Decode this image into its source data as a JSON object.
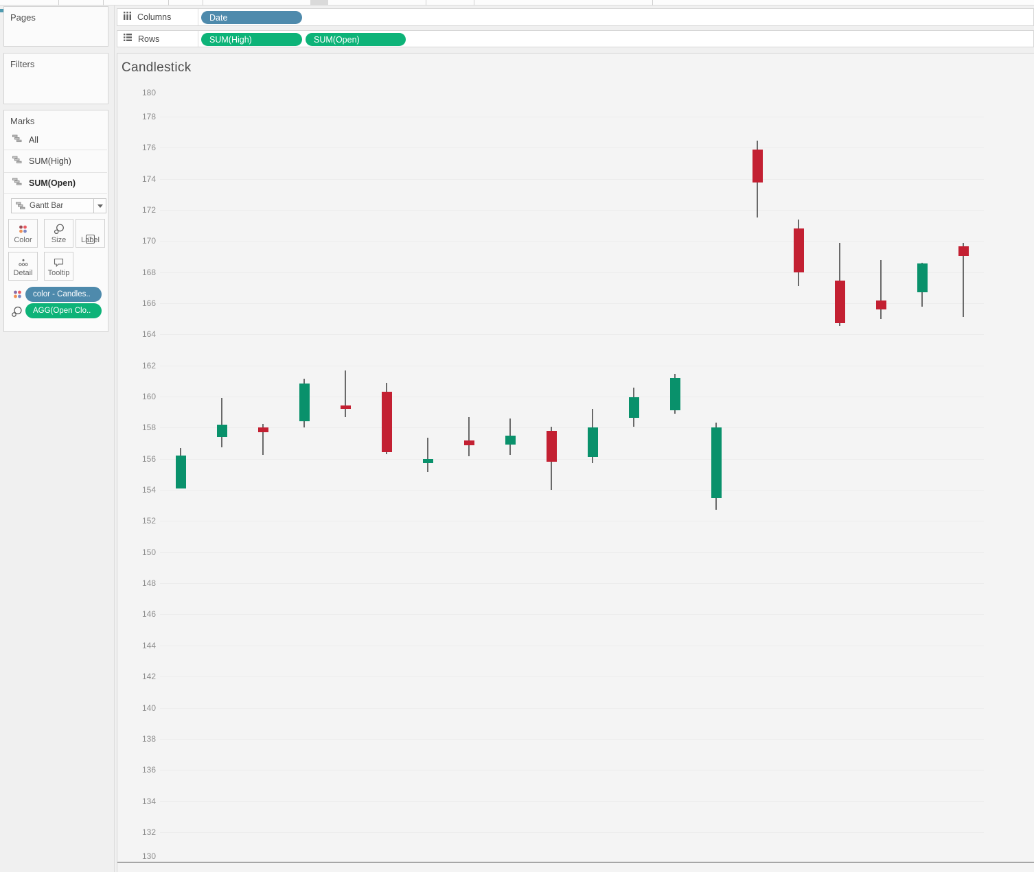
{
  "sidebar": {
    "pages_label": "Pages",
    "filters_label": "Filters",
    "marks": {
      "label": "Marks",
      "cards": [
        {
          "label": "All"
        },
        {
          "label": "SUM(High)"
        },
        {
          "label": "SUM(Open)"
        }
      ],
      "mark_type": "Gantt Bar",
      "buttons": {
        "color": "Color",
        "size": "Size",
        "label": "Label",
        "detail": "Detail",
        "tooltip": "Tooltip"
      },
      "pills": [
        {
          "label": "color - Candles..",
          "color": "#4e8aac"
        },
        {
          "label": "AGG(Open Clo..",
          "color": "#0db378"
        }
      ]
    }
  },
  "shelves": {
    "columns": {
      "label": "Columns",
      "pills": [
        {
          "label": "Date",
          "color": "#4e8aac"
        }
      ]
    },
    "rows": {
      "label": "Rows",
      "pills": [
        {
          "label": "SUM(High)",
          "color": "#0db378"
        },
        {
          "label": "SUM(Open)",
          "color": "#0db378"
        }
      ]
    }
  },
  "sheet": {
    "title": "Candlestick"
  },
  "chart_data": {
    "type": "candlestick",
    "title": "Candlestick",
    "x_field": "Date",
    "ylim": [
      130,
      180
    ],
    "y_ticks": [
      180,
      178,
      176,
      174,
      172,
      170,
      168,
      166,
      164,
      162,
      160,
      158,
      156,
      154,
      152,
      150,
      148,
      146,
      144,
      142,
      140,
      138,
      136,
      134,
      132,
      130
    ],
    "grid": true,
    "colors": {
      "up": "#09916b",
      "down": "#c32032",
      "wick": "#696969"
    },
    "candles": [
      {
        "open": 154.1,
        "high": 156.7,
        "low": 154.1,
        "close": 156.2
      },
      {
        "open": 157.4,
        "high": 159.9,
        "low": 156.75,
        "close": 158.2
      },
      {
        "open": 158.0,
        "high": 158.25,
        "low": 156.25,
        "close": 157.7
      },
      {
        "open": 158.4,
        "high": 161.15,
        "low": 158.0,
        "close": 160.85
      },
      {
        "open": 159.45,
        "high": 161.7,
        "low": 158.7,
        "close": 159.2
      },
      {
        "open": 160.3,
        "high": 160.9,
        "low": 156.3,
        "close": 156.45
      },
      {
        "open": 155.7,
        "high": 157.35,
        "low": 155.15,
        "close": 156.0
      },
      {
        "open": 157.2,
        "high": 158.7,
        "low": 156.15,
        "close": 156.85
      },
      {
        "open": 156.9,
        "high": 158.6,
        "low": 156.25,
        "close": 157.5
      },
      {
        "open": 157.8,
        "high": 158.05,
        "low": 154.0,
        "close": 155.8
      },
      {
        "open": 156.1,
        "high": 159.2,
        "low": 155.7,
        "close": 158.0
      },
      {
        "open": 158.65,
        "high": 160.6,
        "low": 158.05,
        "close": 159.95
      },
      {
        "open": 159.1,
        "high": 161.45,
        "low": 158.9,
        "close": 161.2
      },
      {
        "open": 153.45,
        "high": 158.35,
        "low": 152.75,
        "close": 158.0
      },
      {
        "open": 175.9,
        "high": 176.45,
        "low": 171.5,
        "close": 173.75
      },
      {
        "open": 170.8,
        "high": 171.4,
        "low": 167.1,
        "close": 168.0
      },
      {
        "open": 167.45,
        "high": 169.9,
        "low": 164.55,
        "close": 164.7
      },
      {
        "open": 166.2,
        "high": 168.8,
        "low": 165.0,
        "close": 165.6
      },
      {
        "open": 166.7,
        "high": 168.6,
        "low": 165.8,
        "close": 168.55
      },
      {
        "open": 169.65,
        "high": 169.9,
        "low": 165.1,
        "close": 169.05
      }
    ]
  }
}
